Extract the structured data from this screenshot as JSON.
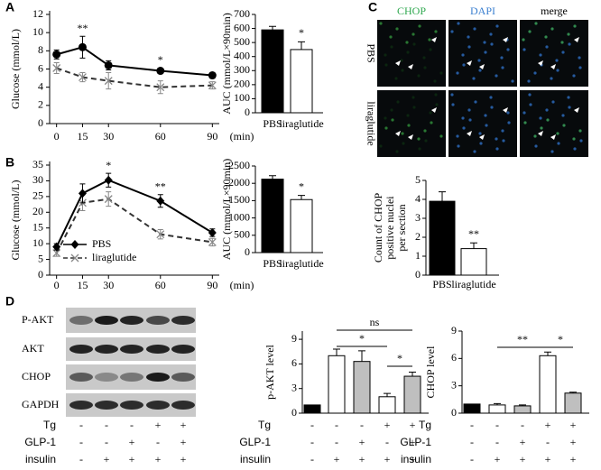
{
  "panel_labels": [
    "A",
    "B",
    "C",
    "D"
  ],
  "chart_data": [
    {
      "type": "line",
      "ylabel": "Glucose (mmol/L)",
      "x": [
        0,
        15,
        30,
        60,
        90
      ],
      "xlim": [
        -4,
        94
      ],
      "xticks": [
        0,
        15,
        30,
        60,
        90
      ],
      "xunit": "(min)",
      "ylim": [
        0,
        12
      ],
      "yticks": [
        0,
        2,
        4,
        6,
        8,
        10,
        12
      ],
      "series": [
        {
          "name": "PBS",
          "color": "#000000",
          "marker": "circle",
          "dash": false,
          "values": [
            7.6,
            8.4,
            6.4,
            5.8,
            5.3
          ],
          "errors": [
            0.5,
            1.2,
            0.5,
            0.3,
            0.3
          ]
        },
        {
          "name": "liraglutide",
          "color": "#888888",
          "marker": "x",
          "dash": true,
          "values": [
            6.1,
            5.1,
            4.7,
            4.0,
            4.2
          ],
          "errors": [
            0.6,
            0.5,
            0.9,
            0.7,
            0.4
          ]
        }
      ],
      "annotations": [
        "**",
        "*"
      ]
    },
    {
      "type": "bar",
      "ylabel": "AUC (mmol/L×90min)",
      "categories": [
        "PBS",
        "liraglutide"
      ],
      "values": [
        590,
        450
      ],
      "errors": [
        25,
        55
      ],
      "colors": [
        "#000000",
        "#ffffff"
      ],
      "ylim": [
        0,
        700
      ],
      "yticks": [
        0,
        100,
        200,
        300,
        400,
        500,
        600,
        700
      ],
      "annotations": [
        "*"
      ]
    },
    {
      "type": "line",
      "ylabel": "Glucose (mmol/L)",
      "x": [
        0,
        15,
        30,
        60,
        90
      ],
      "xlim": [
        -4,
        94
      ],
      "xticks": [
        0,
        15,
        30,
        60,
        90
      ],
      "xunit": "(min)",
      "ylim": [
        0,
        35
      ],
      "yticks": [
        0,
        5,
        10,
        15,
        20,
        25,
        30,
        35
      ],
      "legend": "lower left",
      "series": [
        {
          "name": "PBS",
          "color": "#000000",
          "marker": "diamond",
          "dash": false,
          "values": [
            9,
            26,
            30.2,
            23.6,
            13.5
          ],
          "errors": [
            1,
            3,
            2.2,
            2,
            1.2
          ]
        },
        {
          "name": "liraglutide",
          "color": "#888888",
          "marker": "x",
          "dash": true,
          "values": [
            7,
            23,
            24.2,
            13,
            10.5
          ],
          "errors": [
            1,
            2.5,
            2.3,
            1.5,
            1.2
          ]
        }
      ],
      "annotations": [
        "*",
        "**"
      ]
    },
    {
      "type": "bar",
      "ylabel": "AUC (mmol/L×90min)",
      "categories": [
        "PBS",
        "liraglutide"
      ],
      "values": [
        2120,
        1530
      ],
      "errors": [
        100,
        120
      ],
      "colors": [
        "#000000",
        "#ffffff"
      ],
      "ylim": [
        0,
        2500
      ],
      "yticks": [
        0,
        500,
        1000,
        1500,
        2000,
        2500
      ],
      "annotations": [
        "*"
      ]
    },
    {
      "type": "bar",
      "ylabel": [
        "Count of CHOP",
        "positive nuclei",
        "per section"
      ],
      "categories": [
        "PBS",
        "liraglutide"
      ],
      "values": [
        3.9,
        1.4
      ],
      "errors": [
        0.5,
        0.3
      ],
      "colors": [
        "#000000",
        "#ffffff"
      ],
      "ylim": [
        0,
        5
      ],
      "yticks": [
        0,
        1,
        2,
        3,
        4,
        5
      ],
      "annotations": [
        "**"
      ]
    },
    {
      "type": "bar",
      "ylabel": "p-AKT level",
      "values": [
        1,
        7,
        6.3,
        2,
        4.5
      ],
      "errors": [
        0,
        0.8,
        1.3,
        0.4,
        0.5
      ],
      "colors": [
        "#000000",
        "#ffffff",
        "#bfbfbf",
        "#ffffff",
        "#bfbfbf"
      ],
      "ylim": [
        0,
        10
      ],
      "yticks": [
        0,
        3,
        6,
        9
      ],
      "annotations": [
        "ns",
        "*",
        "*"
      ],
      "conditions": [
        {
          "name": "Tg",
          "values": [
            "-",
            "-",
            "-",
            "+",
            "+"
          ]
        },
        {
          "name": "GLP-1",
          "values": [
            "-",
            "-",
            "+",
            "-",
            "+"
          ]
        },
        {
          "name": "insulin",
          "values": [
            "-",
            "+",
            "+",
            "+",
            "+"
          ]
        }
      ]
    },
    {
      "type": "bar",
      "ylabel": "CHOP level",
      "values": [
        1,
        0.9,
        0.8,
        6.3,
        2.2
      ],
      "errors": [
        0,
        0.15,
        0.1,
        0.4,
        0.1
      ],
      "colors": [
        "#000000",
        "#ffffff",
        "#bfbfbf",
        "#ffffff",
        "#bfbfbf"
      ],
      "ylim": [
        0,
        9
      ],
      "yticks": [
        0,
        3,
        6,
        9
      ],
      "annotations": [
        "**",
        "*"
      ],
      "conditions": [
        {
          "name": "Tg",
          "values": [
            "-",
            "-",
            "-",
            "+",
            "+"
          ]
        },
        {
          "name": "GLP-1",
          "values": [
            "-",
            "-",
            "+",
            "-",
            "+"
          ]
        },
        {
          "name": "insulin",
          "values": [
            "-",
            "+",
            "+",
            "+",
            "+"
          ]
        }
      ]
    }
  ],
  "microscopy": {
    "columns": [
      "CHOP",
      "DAPI",
      "merge"
    ],
    "rows": [
      "PBS",
      "liraglutide"
    ]
  },
  "blot": {
    "rows": [
      "P-AKT",
      "AKT",
      "CHOP",
      "GAPDH"
    ],
    "conditions": [
      {
        "name": "Tg",
        "values": [
          "-",
          "-",
          "-",
          "+",
          "+"
        ]
      },
      {
        "name": "GLP-1",
        "values": [
          "-",
          "-",
          "+",
          "-",
          "+"
        ]
      },
      {
        "name": "insulin",
        "values": [
          "-",
          "+",
          "+",
          "+",
          "+"
        ]
      }
    ]
  }
}
